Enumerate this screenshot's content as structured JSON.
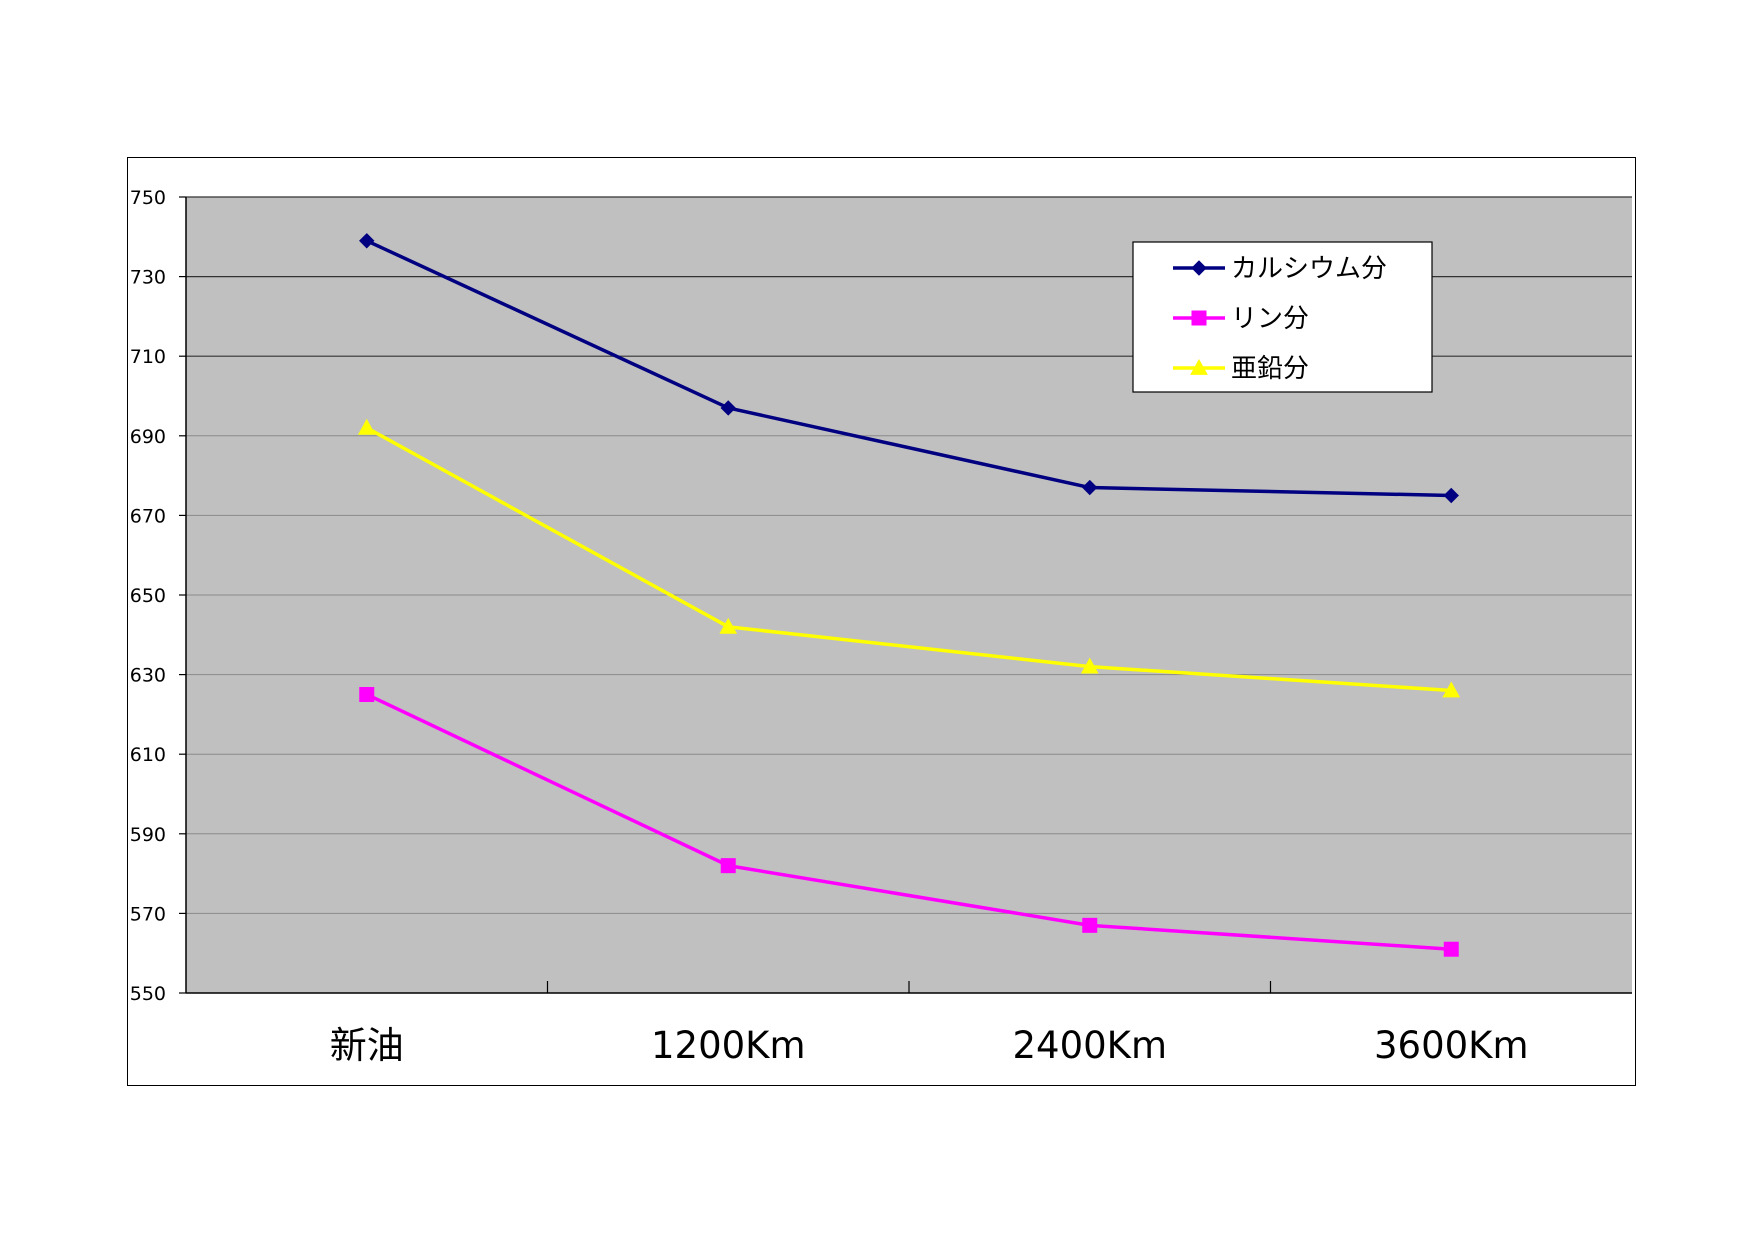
{
  "chart_data": {
    "type": "line",
    "categories": [
      "新油",
      "1200Km",
      "2400Km",
      "3600Km"
    ],
    "series": [
      {
        "name": "カルシウム分",
        "values": [
          739,
          697,
          677,
          675
        ],
        "color": "#000080",
        "marker": "diamond"
      },
      {
        "name": "リン分",
        "values": [
          625,
          582,
          567,
          561
        ],
        "color": "#FF00FF",
        "marker": "square"
      },
      {
        "name": "亜鉛分",
        "values": [
          692,
          642,
          632,
          626
        ],
        "color": "#FFFF00",
        "marker": "triangle"
      }
    ],
    "y_ticks": [
      "550",
      "570",
      "590",
      "610",
      "630",
      "650",
      "670",
      "690",
      "710",
      "730",
      "750"
    ],
    "ylim": [
      550,
      750
    ],
    "y_tick_step": 20,
    "title": "",
    "xlabel": "",
    "ylabel": "",
    "grid": true,
    "legend_position": "top-right",
    "plot_background": "#C0C0C0"
  }
}
